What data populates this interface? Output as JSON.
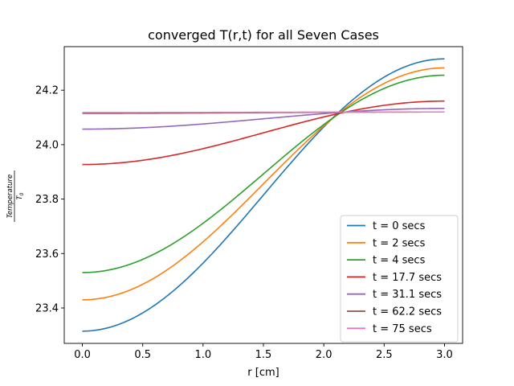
{
  "chart_data": {
    "type": "line",
    "title": "converged T(r,t) for all Seven Cases",
    "xlabel": "r [cm]",
    "ylabel": {
      "numerator": "Temperature",
      "denominator": "T",
      "denominator_sub": "0"
    },
    "xlim": [
      -0.15,
      3.15
    ],
    "ylim": [
      23.27,
      24.36
    ],
    "xticks": [
      0.0,
      0.5,
      1.0,
      1.5,
      2.0,
      2.5,
      3.0
    ],
    "xtick_labels": [
      "0.0",
      "0.5",
      "1.0",
      "1.5",
      "2.0",
      "2.5",
      "3.0"
    ],
    "yticks": [
      23.4,
      23.6,
      23.8,
      24.0,
      24.2
    ],
    "ytick_labels": [
      "23.4",
      "23.6",
      "23.8",
      "24.0",
      "24.2"
    ],
    "grid": false,
    "legend_position": "lower-right",
    "series": [
      {
        "name": "t = 0 secs",
        "color": "#1f77b4",
        "y_at_0": 23.315,
        "y_at_3": 24.315
      },
      {
        "name": "t = 2 secs",
        "color": "#ff7f0e",
        "y_at_0": 23.43,
        "y_at_3": 24.282
      },
      {
        "name": "t = 4 secs",
        "color": "#2ca02c",
        "y_at_0": 23.53,
        "y_at_3": 24.255
      },
      {
        "name": "t = 17.7 secs",
        "color": "#d62728",
        "y_at_0": 23.927,
        "y_at_3": 24.16
      },
      {
        "name": "t = 31.1 secs",
        "color": "#9467bd",
        "y_at_0": 24.057,
        "y_at_3": 24.133
      },
      {
        "name": "t = 62.2 secs",
        "color": "#8c564b",
        "y_at_0": 24.115,
        "y_at_3": 24.12
      },
      {
        "name": "t = 75 secs",
        "color": "#e377c2",
        "y_at_0": 24.118,
        "y_at_3": 24.12
      }
    ]
  }
}
